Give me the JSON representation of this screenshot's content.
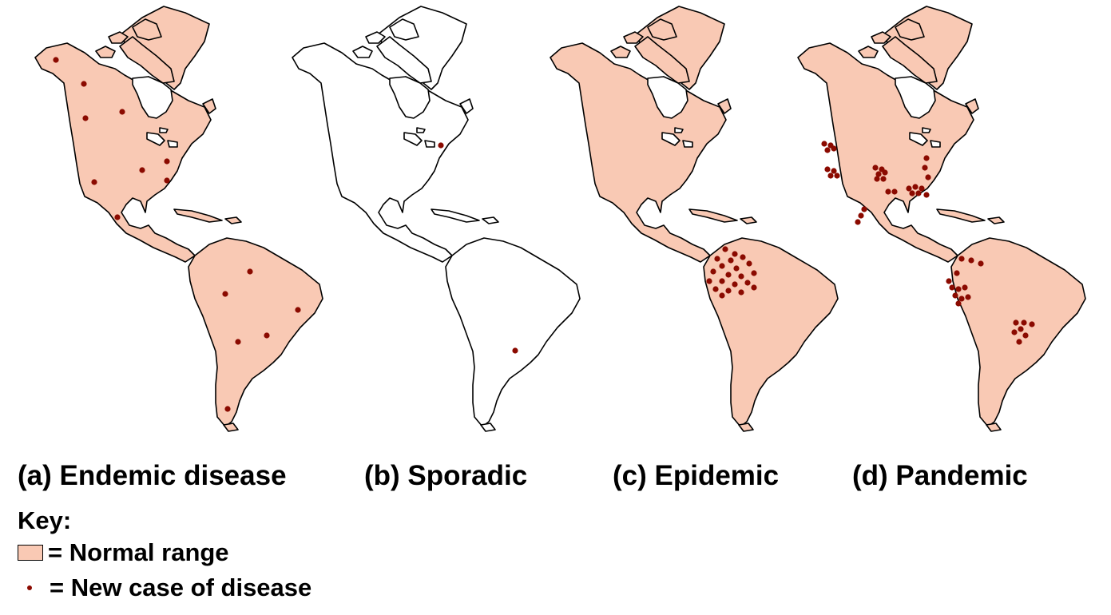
{
  "colors": {
    "range_fill": "#f9c9b4",
    "blank_fill": "#ffffff",
    "case_dot": "#8b0a00",
    "outline": "#000000"
  },
  "panels": [
    {
      "id": "a",
      "caption": "(a) Endemic disease",
      "filled": true,
      "cases": [
        [
          70,
          75
        ],
        [
          105,
          105
        ],
        [
          107,
          148
        ],
        [
          153,
          140
        ],
        [
          118,
          228
        ],
        [
          178,
          213
        ],
        [
          209,
          202
        ],
        [
          209,
          226
        ],
        [
          147,
          272
        ],
        [
          313,
          340
        ],
        [
          282,
          368
        ],
        [
          373,
          388
        ],
        [
          334,
          420
        ],
        [
          298,
          428
        ],
        [
          285,
          512
        ]
      ]
    },
    {
      "id": "b",
      "caption": "(b) Sporadic",
      "filled": false,
      "cases": [
        [
          552,
          182
        ],
        [
          645,
          439
        ]
      ]
    },
    {
      "id": "c",
      "caption": "(c) Epidemic",
      "filled": true,
      "cases": [
        [
          908,
          312
        ],
        [
          920,
          318
        ],
        [
          898,
          324
        ],
        [
          915,
          326
        ],
        [
          930,
          322
        ],
        [
          904,
          333
        ],
        [
          922,
          336
        ],
        [
          938,
          330
        ],
        [
          893,
          340
        ],
        [
          912,
          344
        ],
        [
          928,
          346
        ],
        [
          944,
          342
        ],
        [
          888,
          352
        ],
        [
          904,
          352
        ],
        [
          920,
          356
        ],
        [
          936,
          354
        ],
        [
          896,
          362
        ],
        [
          912,
          364
        ],
        [
          928,
          366
        ],
        [
          944,
          360
        ],
        [
          904,
          370
        ]
      ]
    },
    {
      "id": "d",
      "caption": "(d) Pandemic",
      "filled": true,
      "cases": [
        [
          1032,
          180
        ],
        [
          1040,
          182
        ],
        [
          1036,
          188
        ],
        [
          1044,
          186
        ],
        [
          1036,
          212
        ],
        [
          1044,
          214
        ],
        [
          1040,
          220
        ],
        [
          1048,
          220
        ],
        [
          1096,
          210
        ],
        [
          1104,
          212
        ],
        [
          1100,
          218
        ],
        [
          1108,
          216
        ],
        [
          1098,
          224
        ],
        [
          1106,
          224
        ],
        [
          1112,
          240
        ],
        [
          1120,
          240
        ],
        [
          1138,
          236
        ],
        [
          1146,
          234
        ],
        [
          1142,
          242
        ],
        [
          1150,
          242
        ],
        [
          1160,
          198
        ],
        [
          1158,
          210
        ],
        [
          1162,
          222
        ],
        [
          1154,
          236
        ],
        [
          1160,
          244
        ],
        [
          1082,
          262
        ],
        [
          1078,
          270
        ],
        [
          1074,
          278
        ],
        [
          1204,
          324
        ],
        [
          1216,
          326
        ],
        [
          1228,
          330
        ],
        [
          1198,
          342
        ],
        [
          1188,
          352
        ],
        [
          1192,
          360
        ],
        [
          1200,
          362
        ],
        [
          1208,
          360
        ],
        [
          1196,
          370
        ],
        [
          1204,
          374
        ],
        [
          1212,
          372
        ],
        [
          1200,
          380
        ],
        [
          1272,
          404
        ],
        [
          1282,
          404
        ],
        [
          1292,
          406
        ],
        [
          1278,
          412
        ],
        [
          1270,
          416
        ],
        [
          1284,
          420
        ],
        [
          1276,
          428
        ]
      ]
    }
  ],
  "key": {
    "title": "Key:",
    "range_label": "= Normal range",
    "case_label": "= New case of disease"
  }
}
